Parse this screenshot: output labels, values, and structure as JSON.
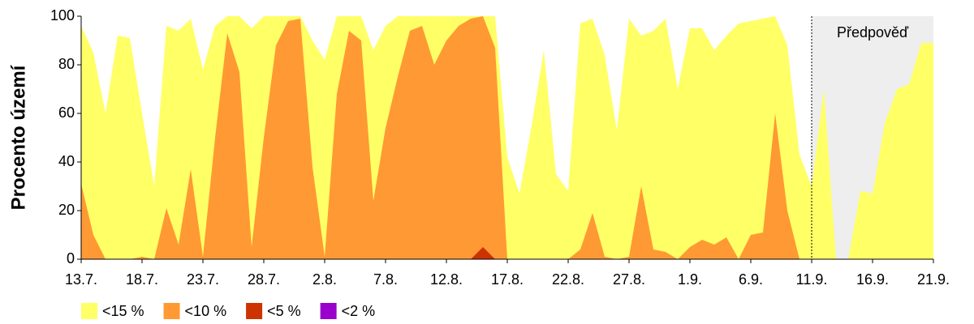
{
  "chart_data": {
    "type": "area",
    "ylabel": "Procento území",
    "categories": [
      "13.7.",
      null,
      null,
      null,
      null,
      "18.7.",
      null,
      null,
      null,
      null,
      "23.7.",
      null,
      null,
      null,
      null,
      "28.7.",
      null,
      null,
      null,
      null,
      "2.8.",
      null,
      null,
      null,
      null,
      "7.8.",
      null,
      null,
      null,
      null,
      "12.8.",
      null,
      null,
      null,
      null,
      "17.8.",
      null,
      null,
      null,
      null,
      "22.8.",
      null,
      null,
      null,
      null,
      "27.8.",
      null,
      null,
      null,
      null,
      "1.9.",
      null,
      null,
      null,
      null,
      "6.9.",
      null,
      null,
      null,
      null,
      "11.9.",
      null,
      null,
      null,
      null,
      "16.9.",
      null,
      null,
      null,
      null,
      "21.9."
    ],
    "series": [
      {
        "name": "<15 %",
        "color": "#ffff66",
        "values": [
          96,
          85,
          60,
          92,
          91,
          60,
          30,
          96,
          94,
          99,
          78,
          96,
          100,
          100,
          95,
          100,
          100,
          100,
          100,
          90,
          82,
          100,
          100,
          100,
          86,
          96,
          100,
          100,
          100,
          100,
          100,
          100,
          100,
          100,
          100,
          42,
          27,
          55,
          86,
          35,
          28,
          97,
          99,
          84,
          53,
          99,
          92,
          94,
          99,
          70,
          95,
          95,
          86,
          92,
          97,
          98,
          99,
          100,
          88,
          43,
          30,
          70,
          0,
          0,
          28,
          27,
          56,
          70,
          72,
          89,
          89
        ]
      },
      {
        "name": "<10 %",
        "color": "#ff9933",
        "values": [
          31,
          10,
          0,
          0,
          0,
          1,
          0,
          21,
          6,
          37,
          1,
          50,
          93,
          77,
          5,
          50,
          88,
          98,
          99,
          38,
          1,
          68,
          94,
          90,
          24,
          54,
          75,
          94,
          96,
          80,
          90,
          96,
          99,
          100,
          87,
          0,
          0,
          0,
          0,
          0,
          0,
          4,
          19,
          1,
          0,
          1,
          30,
          4,
          3,
          0,
          5,
          8,
          6,
          9,
          0,
          10,
          11,
          60,
          20,
          0,
          0,
          0,
          0,
          0,
          0,
          0,
          0,
          0,
          0,
          0,
          0
        ]
      },
      {
        "name": "<5 %",
        "color": "#cc3300",
        "values": [
          0,
          0,
          0,
          0,
          0,
          0,
          0,
          0,
          0,
          0,
          0,
          0,
          0,
          0,
          0,
          0,
          0,
          0,
          0,
          0,
          0,
          0,
          0,
          0,
          0,
          0,
          0,
          0,
          0,
          0,
          0,
          0,
          0,
          5,
          0,
          0,
          0,
          0,
          0,
          0,
          0,
          0,
          0,
          0,
          0,
          0,
          0,
          0,
          0,
          0,
          0,
          0,
          0,
          0,
          0,
          0,
          0,
          0,
          0,
          0,
          0,
          0,
          0,
          0,
          0,
          0,
          0,
          0,
          0,
          0,
          0
        ]
      },
      {
        "name": "<2 %",
        "color": "#9900cc",
        "values": [
          0,
          0,
          0,
          0,
          0,
          0,
          0,
          0,
          0,
          0,
          0,
          0,
          0,
          0,
          0,
          0,
          0,
          0,
          0,
          0,
          0,
          0,
          0,
          0,
          0,
          0,
          0,
          0,
          0,
          0,
          0,
          0,
          0,
          0,
          0,
          0,
          0,
          0,
          0,
          0,
          0,
          0,
          0,
          0,
          0,
          0,
          0,
          0,
          0,
          0,
          0,
          0,
          0,
          0,
          0,
          0,
          0,
          0,
          0,
          0,
          0,
          0,
          0,
          0,
          0,
          0,
          0,
          0,
          0,
          0,
          0
        ]
      }
    ],
    "ylim": [
      0,
      100
    ],
    "yticks": [
      0,
      20,
      40,
      60,
      80,
      100
    ],
    "forecast": {
      "label": "Předpověď",
      "start": "11.9."
    },
    "legend": "bottom"
  }
}
